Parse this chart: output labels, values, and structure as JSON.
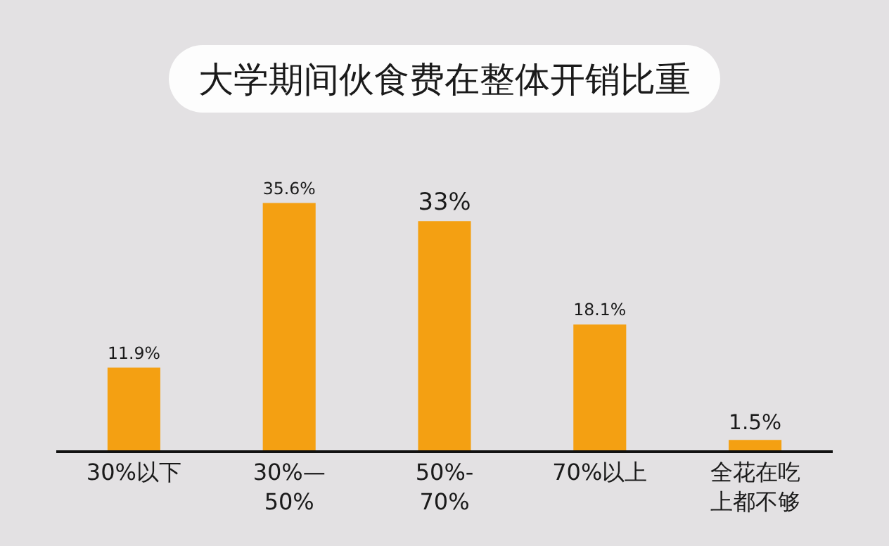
{
  "chart_data": {
    "type": "bar",
    "title": "大学期间伙食费在整体开销比重",
    "categories": [
      "30%以下",
      "30%—50%",
      "50%-70%",
      "70%以上",
      "全花在吃上都不够"
    ],
    "values": [
      11.9,
      35.6,
      33,
      18.1,
      1.5
    ],
    "value_labels": [
      "11.9%",
      "35.6%",
      "33%",
      "18.1%",
      "1.5%"
    ],
    "color": "#f4a012"
  }
}
